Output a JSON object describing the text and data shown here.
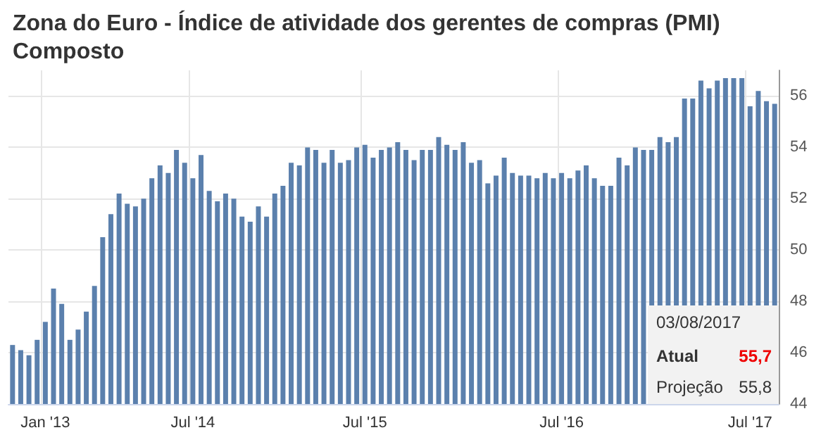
{
  "chart_data": {
    "type": "bar",
    "title": "Zona do Euro - Índice de atividade dos gerentes de compras (PMI) Composto",
    "categories": [
      null,
      null,
      null,
      null,
      "Jan '13",
      null,
      null,
      null,
      null,
      null,
      null,
      null,
      null,
      null,
      null,
      null,
      null,
      null,
      null,
      null,
      null,
      null,
      "Jul '14",
      null,
      null,
      null,
      null,
      null,
      null,
      null,
      null,
      null,
      null,
      null,
      null,
      null,
      null,
      null,
      null,
      null,
      null,
      null,
      null,
      "Jul '15",
      null,
      null,
      null,
      null,
      null,
      null,
      null,
      null,
      null,
      null,
      null,
      null,
      null,
      null,
      null,
      null,
      null,
      null,
      null,
      null,
      null,
      null,
      null,
      "Jul '16",
      null,
      null,
      null,
      null,
      null,
      null,
      null,
      null,
      null,
      null,
      null,
      null,
      null,
      null,
      null,
      null,
      null,
      null,
      null,
      null,
      null,
      null,
      "Jul '17",
      null,
      null,
      null
    ],
    "values": [
      46.3,
      46.1,
      45.9,
      46.5,
      47.2,
      48.5,
      47.9,
      46.5,
      46.9,
      47.6,
      48.6,
      50.5,
      51.4,
      52.2,
      51.8,
      51.7,
      52.0,
      52.8,
      53.3,
      53.0,
      53.9,
      53.4,
      52.8,
      53.7,
      52.3,
      51.9,
      52.2,
      52.0,
      51.3,
      51.1,
      51.7,
      51.3,
      52.2,
      52.5,
      53.4,
      53.3,
      54.0,
      53.9,
      53.4,
      53.9,
      53.4,
      53.5,
      54.0,
      54.1,
      53.6,
      53.9,
      54.0,
      54.2,
      53.9,
      53.5,
      53.9,
      53.9,
      54.4,
      54.1,
      53.9,
      54.2,
      53.4,
      53.5,
      52.6,
      52.9,
      53.6,
      53.0,
      52.9,
      52.9,
      52.8,
      53.0,
      52.8,
      53.0,
      52.8,
      53.1,
      53.3,
      52.8,
      52.5,
      52.5,
      53.6,
      53.3,
      54.0,
      53.9,
      53.9,
      54.4,
      54.2,
      54.4,
      55.9,
      55.9,
      56.6,
      56.3,
      56.6,
      56.7,
      56.7,
      56.7,
      55.6,
      56.2,
      55.8,
      55.7
    ],
    "color": "#5b80ad",
    "ylim": [
      44,
      57
    ],
    "yticks": [
      44,
      46,
      48,
      50,
      52,
      54,
      56
    ],
    "grid": true,
    "annotations": [
      "03/08/2017",
      "Atual",
      "55,7",
      "Projeção",
      "55,8"
    ]
  }
}
